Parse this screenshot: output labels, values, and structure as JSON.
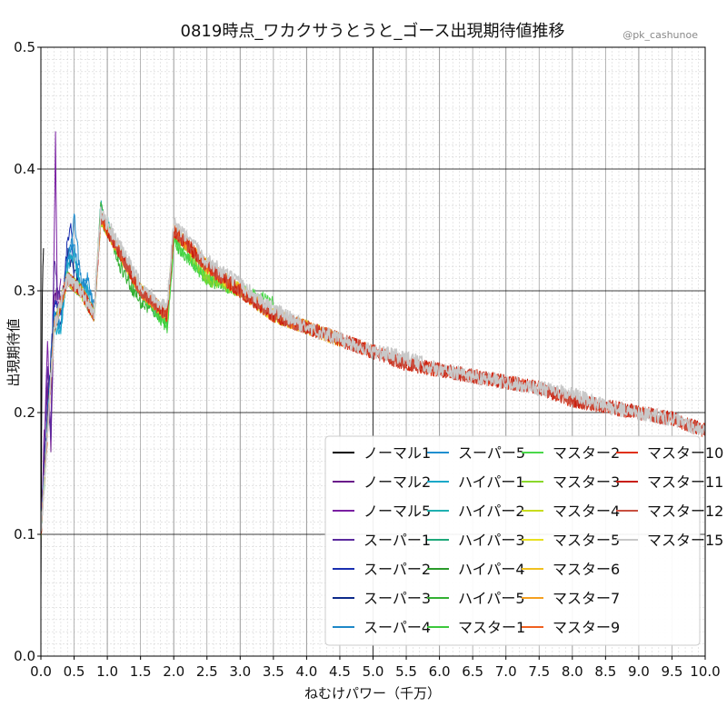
{
  "chart_data": {
    "type": "line",
    "title": "0819時点_ワカクサうとうと_ゴース出現期待値推移",
    "watermark": "@pk_cashunoe",
    "xlabel": "ねむけパワー（千万）",
    "ylabel": "出現期待値",
    "xlim": [
      0,
      10
    ],
    "ylim": [
      0,
      0.5
    ],
    "x_ticks": [
      "0.0",
      "0.5",
      "1.0",
      "1.5",
      "2.0",
      "2.5",
      "3.0",
      "3.5",
      "4.0",
      "4.5",
      "5.0",
      "5.5",
      "6.0",
      "6.5",
      "7.0",
      "7.5",
      "8.0",
      "8.5",
      "9.0",
      "9.5",
      "10.0"
    ],
    "y_ticks": [
      "0.0",
      "0.1",
      "0.2",
      "0.3",
      "0.4",
      "0.5"
    ],
    "grid": true,
    "legend_position": "lower-right",
    "legend_columns": 4,
    "series": [
      {
        "name": "ノーマル1",
        "color": "#000000",
        "x": [
          0.0,
          0.02,
          0.04
        ],
        "y": [
          0.05,
          0.3,
          0.335
        ]
      },
      {
        "name": "ノーマル2",
        "color": "#6a1b8a",
        "x": [
          0.0,
          0.05,
          0.1,
          0.15,
          0.2,
          0.25
        ],
        "y": [
          0.1,
          0.18,
          0.22,
          0.17,
          0.29,
          0.3
        ]
      },
      {
        "name": "ノーマル5",
        "color": "#7a1fa2",
        "x": [
          0.0,
          0.05,
          0.1,
          0.15,
          0.2,
          0.22,
          0.25,
          0.3
        ],
        "y": [
          0.1,
          0.17,
          0.26,
          0.18,
          0.34,
          0.43,
          0.28,
          0.31
        ]
      },
      {
        "name": "スーパー1",
        "color": "#5b2a9e",
        "x": [
          0.0,
          0.05,
          0.1,
          0.15,
          0.2,
          0.25,
          0.3
        ],
        "y": [
          0.1,
          0.16,
          0.24,
          0.18,
          0.33,
          0.3,
          0.29
        ]
      },
      {
        "name": "スーパー2",
        "color": "#1a2fb0",
        "x": [
          0.0,
          0.1,
          0.2,
          0.3,
          0.4,
          0.45,
          0.5
        ],
        "y": [
          0.1,
          0.2,
          0.29,
          0.28,
          0.34,
          0.36,
          0.31
        ]
      },
      {
        "name": "スーパー3",
        "color": "#0d2a8a",
        "x": [
          0.0,
          0.1,
          0.2,
          0.3,
          0.4,
          0.5,
          0.6
        ],
        "y": [
          0.1,
          0.2,
          0.28,
          0.27,
          0.33,
          0.32,
          0.3
        ]
      },
      {
        "name": "スーパー4",
        "color": "#1e88c8",
        "x": [
          0.0,
          0.1,
          0.2,
          0.3,
          0.4,
          0.5,
          0.6,
          0.7,
          0.8
        ],
        "y": [
          0.1,
          0.19,
          0.28,
          0.27,
          0.32,
          0.36,
          0.31,
          0.3,
          0.29
        ]
      },
      {
        "name": "スーパー5",
        "color": "#1f8fd0",
        "x": [
          0.0,
          0.1,
          0.2,
          0.3,
          0.4,
          0.5,
          0.6,
          0.7,
          0.8
        ],
        "y": [
          0.1,
          0.19,
          0.28,
          0.27,
          0.33,
          0.34,
          0.3,
          0.31,
          0.28
        ]
      },
      {
        "name": "ハイパー1",
        "color": "#18a8c8",
        "x": [
          0.0,
          0.1,
          0.2,
          0.3,
          0.4,
          0.5,
          0.6,
          0.7,
          0.8
        ],
        "y": [
          0.1,
          0.19,
          0.27,
          0.27,
          0.32,
          0.33,
          0.3,
          0.3,
          0.28
        ]
      },
      {
        "name": "ハイパー2",
        "color": "#1fb0b0",
        "x": [
          0.0,
          0.2,
          0.4,
          0.6,
          0.8,
          0.9,
          1.2,
          1.5,
          1.8
        ],
        "y": [
          0.1,
          0.27,
          0.31,
          0.3,
          0.28,
          0.37,
          0.33,
          0.3,
          0.28
        ]
      },
      {
        "name": "ハイパー3",
        "color": "#1fa87a",
        "x": [
          0.0,
          0.2,
          0.4,
          0.6,
          0.8,
          0.9,
          1.2,
          1.5,
          1.8
        ],
        "y": [
          0.1,
          0.27,
          0.31,
          0.3,
          0.28,
          0.36,
          0.33,
          0.3,
          0.28
        ]
      },
      {
        "name": "ハイパー4",
        "color": "#2a9a2a",
        "x": [
          0.0,
          0.2,
          0.4,
          0.6,
          0.8,
          0.9,
          1.2,
          1.5,
          1.8
        ],
        "y": [
          0.1,
          0.27,
          0.31,
          0.3,
          0.28,
          0.36,
          0.33,
          0.3,
          0.28
        ]
      },
      {
        "name": "ハイパー5",
        "color": "#33b033",
        "x": [
          0.0,
          0.2,
          0.4,
          0.6,
          0.8,
          0.9,
          1.2,
          1.5,
          1.8
        ],
        "y": [
          0.1,
          0.27,
          0.31,
          0.3,
          0.28,
          0.37,
          0.32,
          0.29,
          0.28
        ]
      },
      {
        "name": "マスター1",
        "color": "#3cc83c",
        "x": [
          0.0,
          0.2,
          0.4,
          0.6,
          0.8,
          0.9,
          1.2,
          1.5,
          1.9,
          2.0,
          2.5,
          3.0
        ],
        "y": [
          0.1,
          0.27,
          0.31,
          0.3,
          0.28,
          0.36,
          0.33,
          0.3,
          0.27,
          0.34,
          0.31,
          0.3
        ]
      },
      {
        "name": "マスター2",
        "color": "#4ad84a",
        "x": [
          0.0,
          0.2,
          0.4,
          0.6,
          0.8,
          0.9,
          1.2,
          1.5,
          1.9,
          2.0,
          2.5,
          3.0,
          3.5
        ],
        "y": [
          0.1,
          0.27,
          0.31,
          0.3,
          0.28,
          0.36,
          0.33,
          0.3,
          0.27,
          0.34,
          0.31,
          0.3,
          0.29
        ]
      },
      {
        "name": "マスター3",
        "color": "#8ad82a",
        "x": [
          0.0,
          0.2,
          0.4,
          0.6,
          0.8,
          0.9,
          1.2,
          1.5,
          1.9,
          2.0,
          2.5,
          3.0,
          3.5,
          4.0
        ],
        "y": [
          0.1,
          0.27,
          0.31,
          0.3,
          0.28,
          0.36,
          0.33,
          0.3,
          0.28,
          0.35,
          0.31,
          0.3,
          0.28,
          0.27
        ]
      },
      {
        "name": "マスター4",
        "color": "#c8dc1c",
        "x": [
          0.0,
          0.2,
          0.4,
          0.6,
          0.8,
          0.9,
          1.2,
          1.5,
          1.9,
          2.0,
          2.5,
          3.0,
          3.5,
          4.0
        ],
        "y": [
          0.1,
          0.27,
          0.31,
          0.3,
          0.28,
          0.36,
          0.33,
          0.3,
          0.28,
          0.35,
          0.32,
          0.3,
          0.28,
          0.27
        ]
      },
      {
        "name": "マスター5",
        "color": "#e8e020",
        "x": [
          0.0,
          0.2,
          0.4,
          0.6,
          0.8,
          0.9,
          1.2,
          1.5,
          1.9,
          2.0,
          2.5,
          3.0,
          3.5,
          4.0,
          4.5
        ],
        "y": [
          0.1,
          0.27,
          0.31,
          0.3,
          0.28,
          0.36,
          0.33,
          0.3,
          0.28,
          0.35,
          0.32,
          0.3,
          0.28,
          0.27,
          0.26
        ]
      },
      {
        "name": "マスター6",
        "color": "#f0c020",
        "x": [
          0.0,
          0.2,
          0.4,
          0.6,
          0.8,
          0.9,
          1.2,
          1.5,
          1.9,
          2.0,
          2.5,
          3.0,
          3.5,
          4.0,
          4.5
        ],
        "y": [
          0.1,
          0.27,
          0.31,
          0.3,
          0.28,
          0.36,
          0.33,
          0.3,
          0.28,
          0.35,
          0.32,
          0.3,
          0.28,
          0.27,
          0.26
        ]
      },
      {
        "name": "マスター7",
        "color": "#f5a020",
        "x": [
          0.0,
          0.2,
          0.4,
          0.6,
          0.8,
          0.9,
          1.2,
          1.5,
          1.9,
          2.0,
          2.5,
          3.0,
          3.5,
          4.0,
          4.5
        ],
        "y": [
          0.1,
          0.27,
          0.31,
          0.3,
          0.28,
          0.36,
          0.33,
          0.3,
          0.28,
          0.35,
          0.32,
          0.3,
          0.28,
          0.27,
          0.26
        ]
      },
      {
        "name": "マスター9",
        "color": "#f06020",
        "x": [
          0.0,
          0.2,
          0.4,
          0.6,
          0.8,
          0.9,
          1.2,
          1.5,
          1.9,
          2.0,
          2.5,
          3.0,
          3.5,
          4.0,
          4.5,
          5.0
        ],
        "y": [
          0.1,
          0.27,
          0.31,
          0.3,
          0.28,
          0.36,
          0.33,
          0.3,
          0.28,
          0.35,
          0.32,
          0.3,
          0.28,
          0.27,
          0.26,
          0.25
        ]
      },
      {
        "name": "マスター10",
        "color": "#e03010",
        "x": [
          0.0,
          0.2,
          0.4,
          0.6,
          0.8,
          0.9,
          1.2,
          1.5,
          1.9,
          2.0,
          2.5,
          3.0,
          3.5,
          4.0,
          4.5,
          5.0,
          5.5,
          6.0,
          6.5,
          7.0,
          7.5,
          8.0,
          8.5,
          9.0,
          9.5,
          10.0
        ],
        "y": [
          0.1,
          0.27,
          0.31,
          0.3,
          0.28,
          0.36,
          0.33,
          0.3,
          0.28,
          0.35,
          0.32,
          0.3,
          0.28,
          0.27,
          0.26,
          0.25,
          0.24,
          0.235,
          0.23,
          0.225,
          0.22,
          0.21,
          0.205,
          0.2,
          0.195,
          0.185
        ]
      },
      {
        "name": "マスター11",
        "color": "#c81e10",
        "x": [
          0.0,
          0.2,
          0.4,
          0.6,
          0.8,
          0.9,
          1.2,
          1.5,
          1.9,
          2.0,
          2.5,
          3.0,
          3.5,
          4.0,
          4.5,
          5.0,
          5.5,
          6.0,
          6.5,
          7.0,
          7.5,
          8.0,
          8.5,
          9.0,
          9.5,
          10.0
        ],
        "y": [
          0.1,
          0.27,
          0.31,
          0.3,
          0.28,
          0.36,
          0.33,
          0.3,
          0.28,
          0.35,
          0.32,
          0.3,
          0.28,
          0.27,
          0.26,
          0.25,
          0.24,
          0.235,
          0.23,
          0.225,
          0.22,
          0.21,
          0.205,
          0.2,
          0.195,
          0.185
        ]
      },
      {
        "name": "マスター12",
        "color": "#c85040",
        "x": [
          0.0,
          0.2,
          0.4,
          0.6,
          0.8,
          0.9,
          1.2,
          1.5,
          1.9,
          2.0,
          2.5,
          3.0,
          3.5,
          4.0,
          4.5,
          5.0,
          5.5,
          6.0,
          6.5,
          7.0,
          7.5,
          8.0,
          8.5,
          9.0,
          9.5,
          10.0
        ],
        "y": [
          0.1,
          0.27,
          0.31,
          0.3,
          0.28,
          0.36,
          0.33,
          0.3,
          0.28,
          0.35,
          0.32,
          0.3,
          0.28,
          0.27,
          0.26,
          0.25,
          0.24,
          0.235,
          0.23,
          0.225,
          0.22,
          0.21,
          0.205,
          0.2,
          0.195,
          0.185
        ]
      },
      {
        "name": "マスター15",
        "color": "#c8c8c8",
        "x": [
          0.0,
          0.2,
          0.4,
          0.6,
          0.8,
          0.9,
          1.2,
          1.5,
          1.9,
          2.0,
          2.5,
          3.0,
          3.5,
          4.0,
          4.5,
          5.0,
          5.5,
          6.0,
          6.5,
          7.0,
          7.5,
          8.0,
          8.5,
          9.0,
          9.5,
          10.0
        ],
        "y": [
          0.1,
          0.27,
          0.31,
          0.3,
          0.28,
          0.365,
          0.335,
          0.305,
          0.285,
          0.355,
          0.325,
          0.305,
          0.285,
          0.27,
          0.26,
          0.25,
          0.245,
          0.235,
          0.23,
          0.225,
          0.22,
          0.215,
          0.205,
          0.2,
          0.195,
          0.185
        ]
      }
    ]
  }
}
